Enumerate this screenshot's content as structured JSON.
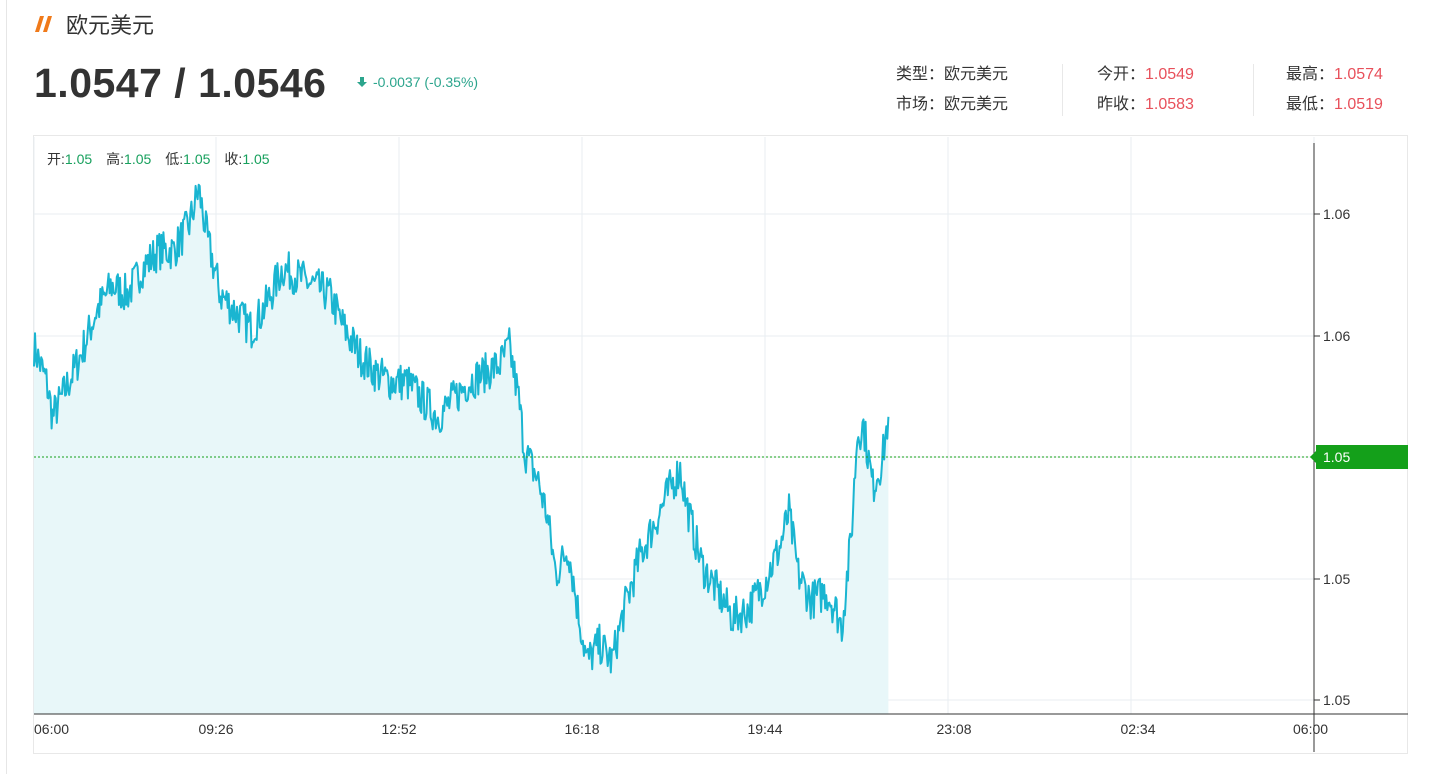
{
  "header": {
    "title": "欧元美元",
    "price": "1.0547 / 1.0546",
    "change": "-0.0037 (-0.35%)"
  },
  "info": {
    "type_label": "类型：",
    "type_value": "欧元美元",
    "market_label": "市场：",
    "market_value": "欧元美元",
    "open_label": "今开：",
    "open_value": "1.0549",
    "prev_close_label": "昨收：",
    "prev_close_value": "1.0583",
    "high_label": "最高：",
    "high_value": "1.0574",
    "low_label": "最低：",
    "low_value": "1.0519"
  },
  "ohlc": {
    "open_label": "开:",
    "open_value": "1.05",
    "high_label": "高:",
    "high_value": "1.05",
    "low_label": "低:",
    "low_value": "1.05",
    "close_label": "收:",
    "close_value": "1.05"
  },
  "colors": {
    "line": "#1ab5d1",
    "area": "#e8f7f9",
    "current_tag": "#14a01a",
    "up_down_green": "#2ca58d",
    "value_red": "#e8505b"
  },
  "chart_data": {
    "type": "area",
    "x_tick_labels": [
      "06:00",
      "09:26",
      "12:52",
      "16:18",
      "19:44",
      "23:08",
      "02:34",
      "06:00"
    ],
    "y_tick_labels": [
      "1.06",
      "1.06",
      "1.05",
      "1.05",
      "1.05"
    ],
    "current_price_label": "1.05",
    "anchors": [
      [
        0,
        1.0555
      ],
      [
        4,
        1.0551
      ],
      [
        6,
        1.0547
      ],
      [
        10,
        1.055
      ],
      [
        15,
        1.0554
      ],
      [
        20,
        1.0559
      ],
      [
        25,
        1.0562
      ],
      [
        30,
        1.0561
      ],
      [
        35,
        1.0564
      ],
      [
        40,
        1.0566
      ],
      [
        45,
        1.0566
      ],
      [
        50,
        1.0569
      ],
      [
        53,
        1.0573
      ],
      [
        56,
        1.0567
      ],
      [
        60,
        1.0561
      ],
      [
        65,
        1.0559
      ],
      [
        70,
        1.0557
      ],
      [
        75,
        1.056
      ],
      [
        80,
        1.0564
      ],
      [
        85,
        1.0563
      ],
      [
        90,
        1.0562
      ],
      [
        95,
        1.0561
      ],
      [
        100,
        1.0557
      ],
      [
        105,
        1.0554
      ],
      [
        110,
        1.0552
      ],
      [
        115,
        1.0551
      ],
      [
        120,
        1.0551
      ],
      [
        125,
        1.0549
      ],
      [
        130,
        1.0547
      ],
      [
        135,
        1.0549
      ],
      [
        140,
        1.0551
      ],
      [
        145,
        1.0552
      ],
      [
        150,
        1.0553
      ],
      [
        153,
        1.0555
      ],
      [
        156,
        1.0549
      ],
      [
        158,
        1.0543
      ],
      [
        162,
        1.054
      ],
      [
        165,
        1.0536
      ],
      [
        168,
        1.0529
      ],
      [
        172,
        1.0532
      ],
      [
        175,
        1.0525
      ],
      [
        178,
        1.0519
      ],
      [
        182,
        1.0521
      ],
      [
        186,
        1.0519
      ],
      [
        190,
        1.0525
      ],
      [
        195,
        1.0531
      ],
      [
        200,
        1.0535
      ],
      [
        205,
        1.0539
      ],
      [
        208,
        1.0541
      ],
      [
        210,
        1.0537
      ],
      [
        215,
        1.053
      ],
      [
        220,
        1.0527
      ],
      [
        225,
        1.0524
      ],
      [
        230,
        1.0525
      ],
      [
        235,
        1.0528
      ],
      [
        240,
        1.0532
      ],
      [
        243,
        1.0536
      ],
      [
        246,
        1.0529
      ],
      [
        250,
        1.0526
      ],
      [
        255,
        1.0527
      ],
      [
        258,
        1.0525
      ],
      [
        260,
        1.0523
      ],
      [
        263,
        1.0533
      ],
      [
        265,
        1.0545
      ],
      [
        267,
        1.0546
      ],
      [
        270,
        1.0539
      ],
      [
        273,
        1.0542
      ],
      [
        275,
        1.0547
      ]
    ],
    "x_range": [
      0,
      412
    ],
    "y_range": [
      1.0513,
      1.0579
    ]
  }
}
